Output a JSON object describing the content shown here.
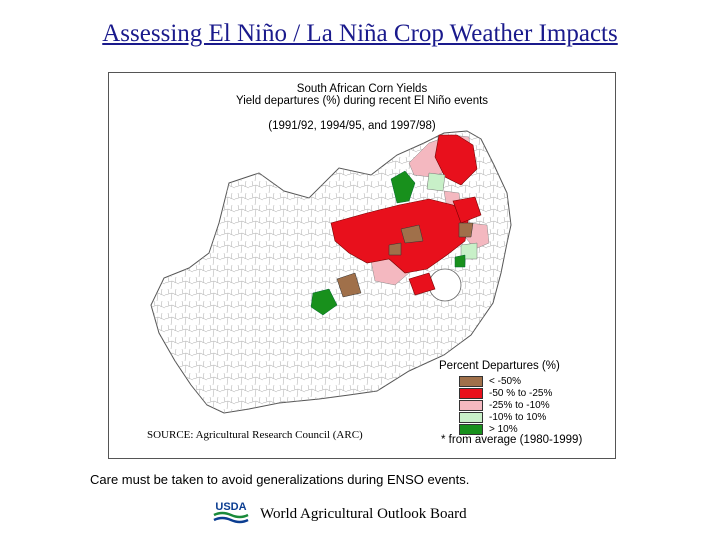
{
  "slide": {
    "title": "Assessing El Niño / La Niña Crop Weather Impacts",
    "caption": "Care must be taken to avoid generalizations during ENSO events.",
    "footer_org": "World Agricultural Outlook Board",
    "footer_logo_text": "USDA"
  },
  "map": {
    "title_line1": "South African Corn Yields",
    "title_line2": "Yield departures (%) during recent El Niño events",
    "title_line3": "(1991/92, 1994/95, and 1997/98)",
    "source": "SOURCE: Agricultural Research Council (ARC)",
    "footnote": "* from average (1980-1999)",
    "legend": {
      "title": "Percent Departures (%)",
      "items": [
        {
          "label": "< -50%",
          "color": "#a0704a"
        },
        {
          "label": "-50 % to -25%",
          "color": "#e8101c"
        },
        {
          "label": "-25% to -10%",
          "color": "#f4b8c0"
        },
        {
          "label": "-10% to 10%",
          "color": "#c8f0c8"
        },
        {
          "label": "> 10%",
          "color": "#18901c"
        }
      ]
    }
  }
}
